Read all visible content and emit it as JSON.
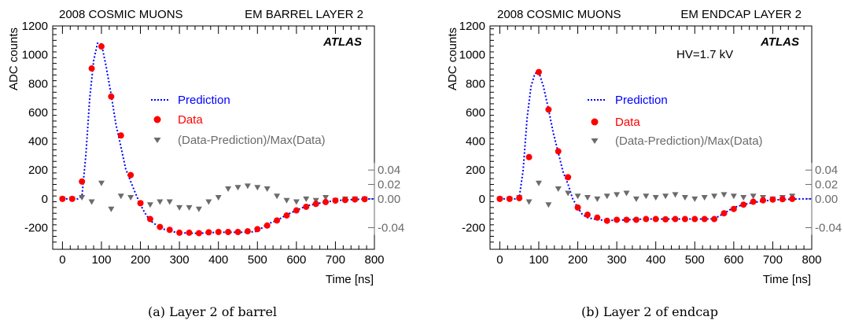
{
  "colors": {
    "prediction": "#0000ff",
    "data": "#ff0000",
    "residual": "#6b6b6b",
    "axis": "#000000"
  },
  "chart_data": [
    {
      "type": "line",
      "header_left": "2008 COSMIC MUONS",
      "header_right": "EM BARREL LAYER 2",
      "brand": "ATLAS",
      "annotation": "",
      "caption": "(a) Layer 2 of barrel",
      "xlabel": "Time [ns]",
      "ylabel": "ADC counts",
      "xlim": [
        -25,
        800
      ],
      "ylim": [
        -350,
        1200
      ],
      "x_ticks": [
        0,
        100,
        200,
        300,
        400,
        500,
        600,
        700,
        800
      ],
      "y_ticks": [
        -200,
        0,
        200,
        400,
        600,
        800,
        1000,
        1200
      ],
      "residual_axis": {
        "ticks": [
          -0.04,
          0.0,
          0.02,
          0.04
        ],
        "tick_labels": [
          "-0.04",
          "0.00",
          "0.02",
          "0.04"
        ],
        "scale_adc_per_unit": 5000
      },
      "legend": {
        "placement": "center-right",
        "prediction": "Prediction",
        "data": "Data",
        "residual": "(Data-Prediction)/Max(Data)"
      },
      "series": [
        {
          "name": "Prediction",
          "style": "dotted-line",
          "x": [
            0,
            25,
            40,
            50,
            60,
            70,
            80,
            90,
            100,
            112,
            125,
            137,
            150,
            162,
            175,
            187,
            200,
            212,
            225,
            250,
            275,
            300,
            325,
            350,
            375,
            400,
            425,
            450,
            475,
            500,
            525,
            550,
            575,
            600,
            625,
            650,
            675,
            700,
            725,
            750,
            775,
            800
          ],
          "y": [
            0,
            0,
            0,
            20,
            300,
            700,
            960,
            1080,
            1075,
            920,
            720,
            520,
            360,
            210,
            120,
            40,
            -40,
            -100,
            -150,
            -200,
            -225,
            -235,
            -238,
            -240,
            -235,
            -232,
            -232,
            -232,
            -232,
            -225,
            -175,
            -150,
            -110,
            -80,
            -50,
            -35,
            -22,
            -12,
            -8,
            -4,
            -2,
            0
          ]
        },
        {
          "name": "Data",
          "style": "points",
          "x": [
            0,
            25,
            50,
            75,
            100,
            125,
            150,
            175,
            200,
            225,
            250,
            275,
            300,
            325,
            350,
            375,
            400,
            425,
            450,
            475,
            500,
            525,
            550,
            575,
            600,
            625,
            650,
            675,
            700,
            725,
            750,
            775
          ],
          "y": [
            0,
            0,
            120,
            905,
            1058,
            710,
            440,
            165,
            -30,
            -140,
            -195,
            -215,
            -235,
            -235,
            -238,
            -232,
            -230,
            -230,
            -230,
            -225,
            -210,
            -185,
            -150,
            -115,
            -80,
            -55,
            -35,
            -22,
            -12,
            -8,
            -4,
            -2
          ]
        },
        {
          "name": "(Data-Prediction)/Max(Data)",
          "style": "triangles",
          "x": [
            0,
            25,
            50,
            75,
            100,
            125,
            150,
            175,
            200,
            225,
            250,
            275,
            300,
            325,
            350,
            375,
            400,
            425,
            450,
            475,
            500,
            525,
            550,
            575,
            600,
            625,
            650,
            675,
            700,
            725,
            750,
            775
          ],
          "y": [
            0.0,
            0.0,
            0.002,
            -0.004,
            0.022,
            -0.014,
            0.004,
            0.002,
            -0.006,
            -0.008,
            -0.004,
            -0.004,
            -0.012,
            -0.012,
            -0.014,
            -0.004,
            0.002,
            0.014,
            0.016,
            0.018,
            0.016,
            0.014,
            0.004,
            -0.002,
            -0.004,
            0.0,
            -0.002,
            0.002,
            -0.002,
            0.0,
            0.0,
            0.0
          ]
        }
      ]
    },
    {
      "type": "line",
      "header_left": "2008 COSMIC MUONS",
      "header_right": "EM ENDCAP LAYER 2",
      "brand": "ATLAS",
      "annotation": "HV=1.7 kV",
      "caption": "(b) Layer 2 of endcap",
      "xlabel": "Time [ns]",
      "ylabel": "ADC counts",
      "xlim": [
        -25,
        800
      ],
      "ylim": [
        -350,
        1200
      ],
      "x_ticks": [
        0,
        100,
        200,
        300,
        400,
        500,
        600,
        700,
        800
      ],
      "y_ticks": [
        -200,
        0,
        200,
        400,
        600,
        800,
        1000,
        1200
      ],
      "residual_axis": {
        "ticks": [
          -0.04,
          0.0,
          0.02,
          0.04
        ],
        "tick_labels": [
          "-0.04",
          "0.00",
          "0.02",
          "0.04"
        ],
        "scale_adc_per_unit": 5000
      },
      "legend": {
        "placement": "center-right",
        "prediction": "Prediction",
        "data": "Data",
        "residual": "(Data-Prediction)/Max(Data)"
      },
      "series": [
        {
          "name": "Prediction",
          "style": "dotted-line",
          "x": [
            0,
            25,
            40,
            50,
            60,
            70,
            80,
            90,
            100,
            112,
            125,
            137,
            150,
            162,
            175,
            187,
            200,
            212,
            225,
            250,
            275,
            300,
            325,
            350,
            375,
            400,
            425,
            450,
            475,
            500,
            525,
            550,
            575,
            600,
            625,
            650,
            675,
            700,
            725,
            750,
            775,
            800
          ],
          "y": [
            0,
            0,
            0,
            10,
            200,
            560,
            780,
            870,
            880,
            780,
            620,
            460,
            320,
            190,
            100,
            0,
            -60,
            -110,
            -130,
            -145,
            -150,
            -148,
            -146,
            -142,
            -140,
            -140,
            -140,
            -140,
            -140,
            -140,
            -140,
            -138,
            -100,
            -60,
            -40,
            -25,
            -15,
            -8,
            -5,
            -2,
            0,
            0
          ]
        },
        {
          "name": "Data",
          "style": "points",
          "x": [
            0,
            25,
            50,
            75,
            100,
            125,
            150,
            175,
            200,
            225,
            250,
            275,
            300,
            325,
            350,
            375,
            400,
            425,
            450,
            475,
            500,
            525,
            550,
            575,
            600,
            625,
            650,
            675,
            700,
            725,
            750
          ],
          "y": [
            0,
            0,
            5,
            290,
            880,
            620,
            330,
            150,
            -60,
            -110,
            -130,
            -152,
            -145,
            -145,
            -145,
            -140,
            -140,
            -142,
            -140,
            -140,
            -140,
            -140,
            -140,
            -100,
            -70,
            -40,
            -20,
            -10,
            -5,
            -2,
            0
          ]
        },
        {
          "name": "(Data-Prediction)/Max(Data)",
          "style": "triangles",
          "x": [
            0,
            25,
            50,
            75,
            100,
            125,
            150,
            175,
            200,
            225,
            250,
            275,
            300,
            325,
            350,
            375,
            400,
            425,
            450,
            475,
            500,
            525,
            550,
            575,
            600,
            625,
            650,
            675,
            700,
            725,
            750
          ],
          "y": [
            0.0,
            0.0,
            0.002,
            -0.004,
            0.022,
            -0.008,
            0.014,
            0.008,
            0.004,
            0.002,
            0.0,
            0.004,
            0.006,
            0.008,
            0.0,
            0.004,
            0.002,
            0.004,
            0.006,
            0.002,
            0.0,
            0.002,
            0.004,
            0.006,
            0.004,
            0.002,
            0.004,
            0.002,
            0.0,
            0.002,
            0.004
          ]
        }
      ]
    }
  ]
}
